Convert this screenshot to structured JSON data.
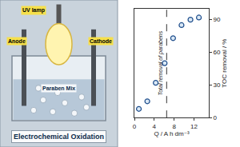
{
  "chart_data": {
    "type": "scatter",
    "x": [
      0.9,
      2.6,
      4.3,
      6.1,
      7.8,
      9.5,
      11.3,
      13.0
    ],
    "values": [
      8,
      15,
      32,
      50,
      73,
      85,
      90,
      92
    ],
    "color": "#1f4e8c",
    "marker": "circle",
    "xlabel": "Q / A h dm⁻³",
    "ylabel": "TOC removal / %",
    "xlim": [
      0,
      15
    ],
    "xticks": [
      0,
      4,
      8,
      12
    ],
    "ylim": [
      0,
      100
    ],
    "yticks": [
      0,
      30,
      60,
      90
    ],
    "grid": false,
    "annotations": [
      {
        "text": "Total removal of parabens",
        "x": 6.5,
        "line_style": "dashed"
      }
    ]
  },
  "illustration": {
    "title": "Electrochemical Oxidation",
    "labels": [
      "UV lamp",
      "Anode",
      "Cathode",
      "Paraben Mix"
    ]
  }
}
